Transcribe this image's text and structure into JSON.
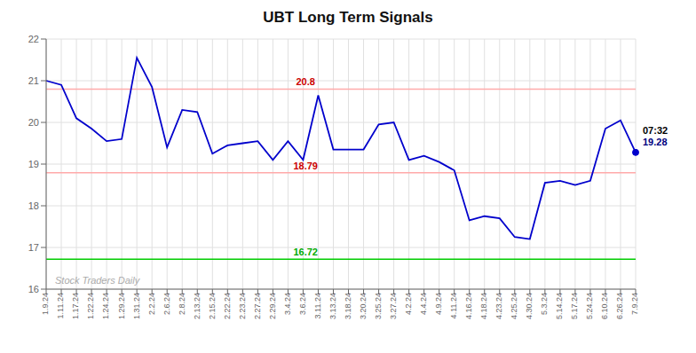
{
  "chart_data": {
    "type": "line",
    "title": "UBT Long Term Signals",
    "categories": [
      "1.9.24",
      "1.11.24",
      "1.17.24",
      "1.22.24",
      "1.24.24",
      "1.29.24",
      "1.31.24",
      "2.2.24",
      "2.6.24",
      "2.8.24",
      "2.13.24",
      "2.15.24",
      "2.22.24",
      "2.23.24",
      "2.27.24",
      "2.29.24",
      "3.4.24",
      "3.6.24",
      "3.11.24",
      "3.13.24",
      "3.18.24",
      "3.20.24",
      "3.25.24",
      "3.27.24",
      "4.2.24",
      "4.4.24",
      "4.9.24",
      "4.11.24",
      "4.16.24",
      "4.18.24",
      "4.23.24",
      "4.25.24",
      "4.30.24",
      "5.3.24",
      "5.14.24",
      "5.17.24",
      "5.24.24",
      "6.10.24",
      "6.26.24",
      "7.9.24"
    ],
    "values": [
      21.0,
      20.9,
      20.1,
      19.85,
      19.55,
      19.6,
      21.55,
      20.85,
      19.4,
      20.3,
      20.25,
      19.25,
      19.45,
      19.5,
      19.55,
      19.1,
      19.55,
      19.1,
      20.65,
      19.35,
      19.35,
      19.35,
      19.95,
      20.0,
      19.1,
      19.2,
      19.05,
      18.85,
      17.65,
      17.75,
      17.7,
      17.25,
      17.2,
      18.55,
      18.6,
      18.5,
      18.6,
      19.85,
      20.05,
      19.28
    ],
    "color": "#0000cc",
    "marker": "last",
    "ylim": [
      16,
      22
    ],
    "yticks": [
      16,
      17,
      18,
      19,
      20,
      21,
      22
    ],
    "grid": true,
    "hlines": [
      {
        "value": 20.8,
        "color": "#ffaaaa",
        "label_color": "#cc0000"
      },
      {
        "value": 18.79,
        "color": "#ffaaaa",
        "label_color": "#cc0000"
      },
      {
        "value": 16.72,
        "color": "#00cc00",
        "label_color": "#00aa00"
      }
    ],
    "last_point_labels": [
      {
        "text": "07:32",
        "color": "#000000"
      },
      {
        "text": "19.28",
        "color": "#000080"
      }
    ],
    "watermark": {
      "text": "Stock Traders Daily",
      "color": "#aaaaaa"
    }
  }
}
